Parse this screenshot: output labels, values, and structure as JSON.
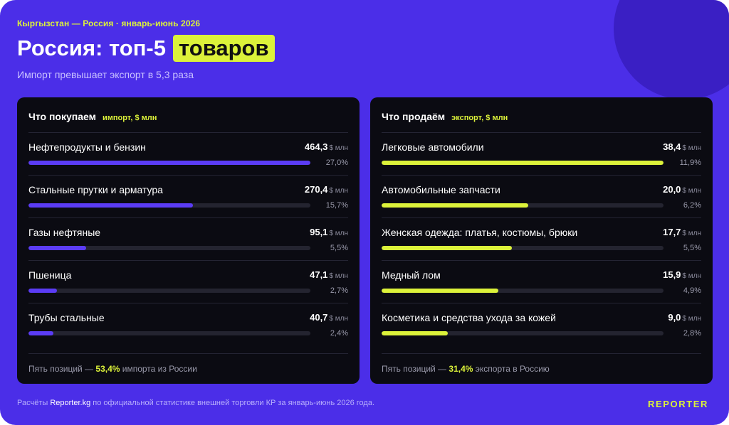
{
  "header": {
    "kicker": "Кыргызстан — Россия · январь-июнь 2026",
    "title_main": "Россия: топ-5",
    "title_highlight": "товаров",
    "subtitle": "Импорт превышает экспорт в 5,3 раза"
  },
  "colors": {
    "background": "#4b2ee8",
    "card": "#0b0b12",
    "accent_lime": "#dcf23a",
    "import_bar": "#5b3cf5"
  },
  "chart_data": [
    {
      "type": "bar",
      "orientation": "horizontal",
      "title": "Что покупаем",
      "unit_label": "импорт, $ млн",
      "value_unit": "$ млн",
      "categories": [
        "Нефтепродукты и бензин",
        "Стальные прутки и арматура",
        "Газы нефтяные",
        "Пшеница",
        "Трубы стальные"
      ],
      "values": [
        464.3,
        270.4,
        95.1,
        47.1,
        40.7
      ],
      "value_labels": [
        "464,3",
        "270,4",
        "95,1",
        "47,1",
        "40,7"
      ],
      "shares": [
        "27,0%",
        "15,7%",
        "5,5%",
        "2,7%",
        "2,4%"
      ],
      "xlim": [
        0,
        464.3
      ],
      "footer": {
        "prefix": "Пять позиций — ",
        "highlight": "53,4%",
        "suffix": " импорта из России"
      }
    },
    {
      "type": "bar",
      "orientation": "horizontal",
      "title": "Что продаём",
      "unit_label": "экспорт, $ млн",
      "value_unit": "$ млн",
      "categories": [
        "Легковые автомобили",
        "Автомобильные запчасти",
        "Женская одежда: платья, костюмы, брюки",
        "Медный лом",
        "Косметика и средства ухода за кожей"
      ],
      "values": [
        38.4,
        20.0,
        17.7,
        15.9,
        9.0
      ],
      "value_labels": [
        "38,4",
        "20,0",
        "17,7",
        "15,9",
        "9,0"
      ],
      "shares": [
        "11,9%",
        "6,2%",
        "5,5%",
        "4,9%",
        "2,8%"
      ],
      "xlim": [
        0,
        38.4
      ],
      "footer": {
        "prefix": "Пять позиций — ",
        "highlight": "31,4%",
        "suffix": " экспорта в Россию"
      }
    }
  ],
  "footer": {
    "source_prefix": "Расчёты ",
    "source_brand": "Reporter.kg",
    "source_suffix": " по официальной статистике внешней торговли КР за январь-июнь 2026 года.",
    "logo": "REPORTER"
  }
}
